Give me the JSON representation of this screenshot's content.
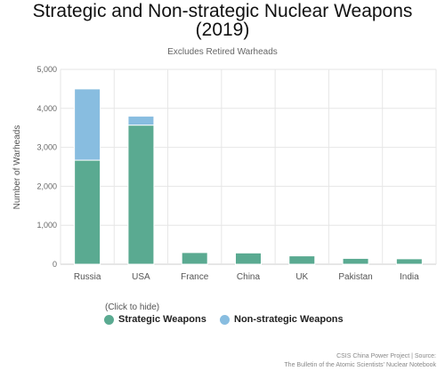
{
  "chart_data": {
    "type": "bar",
    "stacked": true,
    "title_lines": [
      "Strategic and Non-strategic Nuclear Weapons",
      "(2019)"
    ],
    "subtitle": "Excludes Retired Warheads",
    "xlabel": "",
    "ylabel": "Number of Warheads",
    "ylim": [
      0,
      5000
    ],
    "yticks": [
      0,
      1000,
      2000,
      3000,
      4000,
      5000
    ],
    "ytick_labels": [
      "0",
      "1,000",
      "2,000",
      "3,000",
      "4,000",
      "5,000"
    ],
    "grid": true,
    "legend_position": "bottom-left",
    "legend_hint": "(Click to hide)",
    "categories": [
      "Russia",
      "USA",
      "France",
      "China",
      "UK",
      "Pakistan",
      "India"
    ],
    "series": [
      {
        "name": "Strategic Weapons",
        "color": "#5aaa91",
        "values": [
          2670,
          3570,
          300,
          290,
          215,
          150,
          140
        ]
      },
      {
        "name": "Non-strategic Weapons",
        "color": "#88bde0",
        "values": [
          1830,
          230,
          0,
          0,
          0,
          0,
          0
        ]
      }
    ]
  },
  "credits": {
    "line1": "CSIS China Power Project | Source:",
    "line2": "The Bulletin of the Atomic Scientists' Nuclear Notebook"
  }
}
